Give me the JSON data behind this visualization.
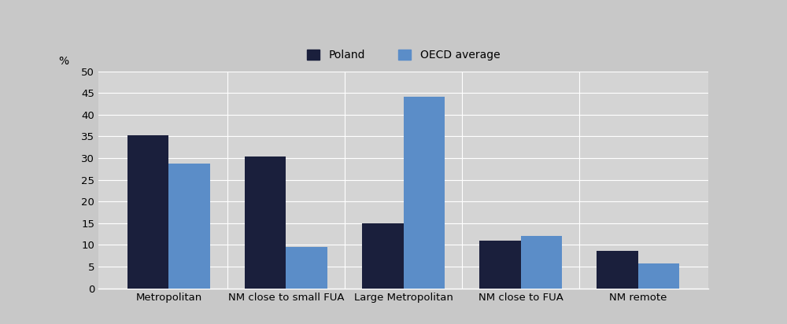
{
  "categories": [
    "Metropolitan",
    "NM close to small FUA",
    "Large Metropolitan",
    "NM close to FUA",
    "NM remote"
  ],
  "poland_values": [
    35.2,
    30.3,
    14.9,
    11.0,
    8.6
  ],
  "oecd_values": [
    28.8,
    9.5,
    44.2,
    12.1,
    5.7
  ],
  "poland_color": "#1a1f3c",
  "oecd_color": "#5b8dc8",
  "plot_bg_color": "#d4d4d4",
  "legend_bg_color": "#c8c8c8",
  "fig_bg_color": "#c8c8c8",
  "ylabel": "%",
  "ylim": [
    0,
    50
  ],
  "yticks": [
    0,
    5,
    10,
    15,
    20,
    25,
    30,
    35,
    40,
    45,
    50
  ],
  "legend_labels": [
    "Poland",
    "OECD average"
  ],
  "bar_width": 0.35,
  "grid_color": "#ffffff",
  "tick_fontsize": 9.5,
  "label_fontsize": 10,
  "legend_fontsize": 10
}
